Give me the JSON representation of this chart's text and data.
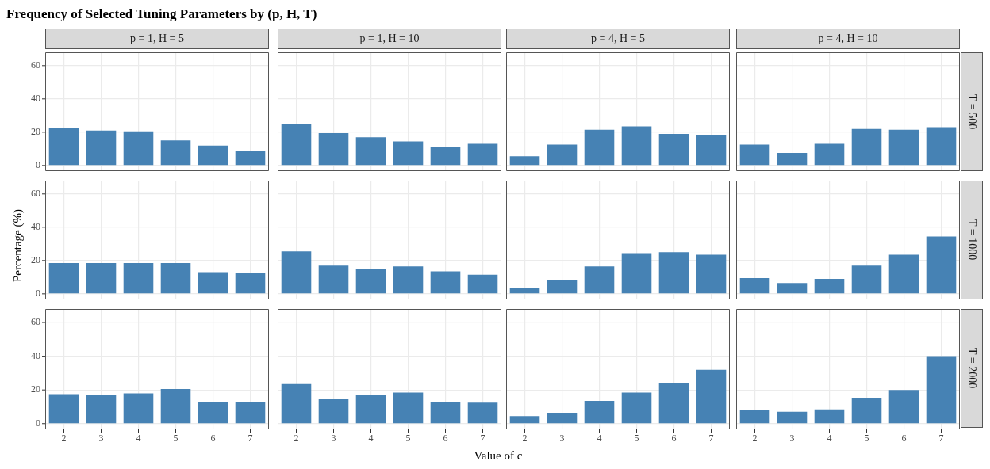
{
  "chart_data": [
    {
      "type": "bar",
      "title": "Frequency of Selected Tuning Parameters by (p, H, T)",
      "subtitle": "p = 1, H = 5",
      "categories": [
        "2",
        "3",
        "4",
        "5",
        "6",
        "7"
      ],
      "values": [
        22.5,
        21,
        20.5,
        15,
        12,
        8.5
      ],
      "color": "#4682b4",
      "ylim": [
        -3.4,
        68
      ],
      "yticks": [
        0,
        20,
        40,
        60
      ],
      "grid": true,
      "tick_labels": "y"
    },
    {
      "type": "bar",
      "subtitle": "p = 1, H = 10",
      "categories": [
        "2",
        "3",
        "4",
        "5",
        "6",
        "7"
      ],
      "values": [
        25,
        19.5,
        17,
        14.5,
        11,
        13
      ],
      "color": "#4682b4",
      "ylim": [
        -3.4,
        68
      ],
      "yticks": [
        0,
        20,
        40,
        60
      ],
      "grid": true,
      "tick_labels": false
    },
    {
      "type": "bar",
      "subtitle": "p = 4, H = 5",
      "categories": [
        "2",
        "3",
        "4",
        "5",
        "6",
        "7"
      ],
      "values": [
        5.5,
        12.5,
        21.5,
        23.5,
        19,
        18
      ],
      "color": "#4682b4",
      "ylim": [
        -3.4,
        68
      ],
      "yticks": [
        0,
        20,
        40,
        60
      ],
      "grid": true,
      "tick_labels": false
    },
    {
      "type": "bar",
      "subtitle": "p = 4, H = 10",
      "y2label": "T = 500",
      "categories": [
        "2",
        "3",
        "4",
        "5",
        "6",
        "7"
      ],
      "values": [
        12.5,
        7.5,
        13,
        22,
        21.5,
        23
      ],
      "color": "#4682b4",
      "ylim": [
        -3.4,
        68
      ],
      "yticks": [
        0,
        20,
        40,
        60
      ],
      "grid": true,
      "tick_labels": false
    },
    {
      "type": "bar",
      "ylabel": "Percentage (%)",
      "categories": [
        "2",
        "3",
        "4",
        "5",
        "6",
        "7"
      ],
      "values": [
        18.5,
        18.5,
        18.5,
        18.5,
        13,
        12.5
      ],
      "color": "#4682b4",
      "ylim": [
        -3.4,
        68
      ],
      "yticks": [
        0,
        20,
        40,
        60
      ],
      "grid": true,
      "tick_labels": "y"
    },
    {
      "type": "bar",
      "categories": [
        "2",
        "3",
        "4",
        "5",
        "6",
        "7"
      ],
      "values": [
        25.5,
        17,
        15,
        16.5,
        13.5,
        11.5
      ],
      "color": "#4682b4",
      "ylim": [
        -3.4,
        68
      ],
      "yticks": [
        0,
        20,
        40,
        60
      ],
      "grid": true,
      "tick_labels": false
    },
    {
      "type": "bar",
      "categories": [
        "2",
        "3",
        "4",
        "5",
        "6",
        "7"
      ],
      "values": [
        3.5,
        8,
        16.5,
        24.5,
        25,
        23.5
      ],
      "color": "#4682b4",
      "ylim": [
        -3.4,
        68
      ],
      "yticks": [
        0,
        20,
        40,
        60
      ],
      "grid": true,
      "tick_labels": false
    },
    {
      "type": "bar",
      "y2label": "T = 1000",
      "categories": [
        "2",
        "3",
        "4",
        "5",
        "6",
        "7"
      ],
      "values": [
        9.5,
        6.5,
        9,
        17,
        23.5,
        34.5
      ],
      "color": "#4682b4",
      "ylim": [
        -3.4,
        68
      ],
      "yticks": [
        0,
        20,
        40,
        60
      ],
      "grid": true,
      "tick_labels": false
    },
    {
      "type": "bar",
      "categories": [
        "2",
        "3",
        "4",
        "5",
        "6",
        "7"
      ],
      "values": [
        17.5,
        17,
        18,
        20.5,
        13,
        13
      ],
      "color": "#4682b4",
      "ylim": [
        -3.4,
        68
      ],
      "yticks": [
        0,
        20,
        40,
        60
      ],
      "grid": true
    },
    {
      "type": "bar",
      "xlabel": "Value of c",
      "categories": [
        "2",
        "3",
        "4",
        "5",
        "6",
        "7"
      ],
      "values": [
        23.5,
        14.5,
        17,
        18.5,
        13,
        12.5
      ],
      "color": "#4682b4",
      "ylim": [
        -3.4,
        68
      ],
      "yticks": [
        0,
        20,
        40,
        60
      ],
      "grid": true,
      "tick_labels": "x"
    },
    {
      "type": "bar",
      "categories": [
        "2",
        "3",
        "4",
        "5",
        "6",
        "7"
      ],
      "values": [
        4.5,
        6.5,
        13.5,
        18.5,
        24,
        32
      ],
      "color": "#4682b4",
      "ylim": [
        -3.4,
        68
      ],
      "yticks": [
        0,
        20,
        40,
        60
      ],
      "grid": true,
      "tick_labels": "x"
    },
    {
      "type": "bar",
      "y2label": "T = 2000",
      "categories": [
        "2",
        "3",
        "4",
        "5",
        "6",
        "7"
      ],
      "values": [
        8,
        7,
        8.5,
        15,
        20,
        40
      ],
      "color": "#4682b4",
      "ylim": [
        -3.4,
        68
      ],
      "yticks": [
        0,
        20,
        40,
        60
      ],
      "grid": true,
      "tick_labels": "x"
    }
  ]
}
